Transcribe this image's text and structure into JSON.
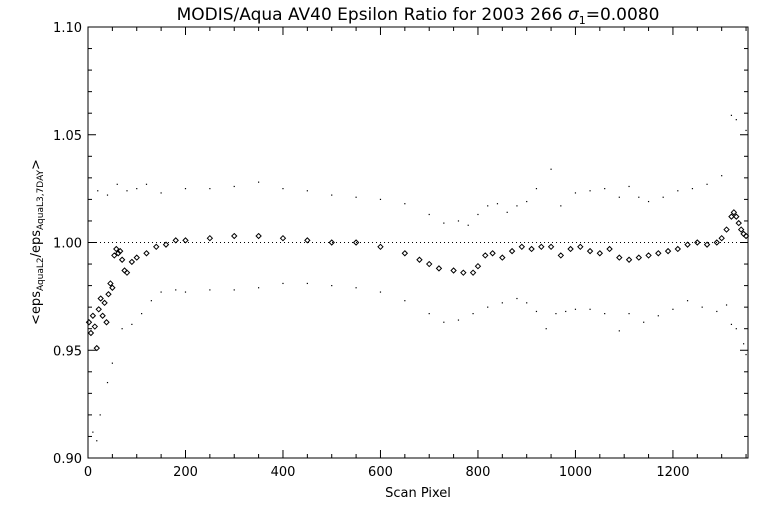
{
  "chart_data": {
    "type": "scatter",
    "title": {
      "main": "MODIS/Aqua AV40 Epsilon Ratio for 2003 266 ",
      "sigma_symbol": "σ",
      "sigma_subscript": "1",
      "sigma_value": "=0.0080"
    },
    "xlabel": "Scan Pixel",
    "ylabel": {
      "prefix": "<eps",
      "sub1": "AquaL2",
      "middle": "/eps",
      "sub2": "AquaL3,7DAY",
      "suffix": ">"
    },
    "xlim": [
      0,
      1354
    ],
    "ylim": [
      0.9,
      1.1
    ],
    "x_ticks": [
      {
        "value": 0,
        "label": "0"
      },
      {
        "value": 200,
        "label": "200"
      },
      {
        "value": 400,
        "label": "400"
      },
      {
        "value": 600,
        "label": "600"
      },
      {
        "value": 800,
        "label": "800"
      },
      {
        "value": 1000,
        "label": "1000"
      },
      {
        "value": 1200,
        "label": "1200"
      }
    ],
    "y_ticks": [
      {
        "value": 0.9,
        "label": "0.90"
      },
      {
        "value": 0.95,
        "label": "0.95"
      },
      {
        "value": 1.0,
        "label": "1.00"
      },
      {
        "value": 1.05,
        "label": "1.05"
      },
      {
        "value": 1.1,
        "label": "1.10"
      }
    ],
    "reference_line": 1.0,
    "series": [
      {
        "role": "mean",
        "marker": "diamond",
        "points": [
          [
            2,
            0.963
          ],
          [
            6,
            0.958
          ],
          [
            10,
            0.966
          ],
          [
            14,
            0.961
          ],
          [
            18,
            0.951
          ],
          [
            22,
            0.969
          ],
          [
            26,
            0.974
          ],
          [
            30,
            0.966
          ],
          [
            34,
            0.972
          ],
          [
            38,
            0.963
          ],
          [
            42,
            0.976
          ],
          [
            46,
            0.981
          ],
          [
            50,
            0.979
          ],
          [
            54,
            0.994
          ],
          [
            58,
            0.997
          ],
          [
            62,
            0.995
          ],
          [
            66,
            0.996
          ],
          [
            70,
            0.992
          ],
          [
            75,
            0.987
          ],
          [
            80,
            0.986
          ],
          [
            90,
            0.991
          ],
          [
            100,
            0.993
          ],
          [
            120,
            0.995
          ],
          [
            140,
            0.998
          ],
          [
            160,
            0.999
          ],
          [
            180,
            1.001
          ],
          [
            200,
            1.001
          ],
          [
            250,
            1.002
          ],
          [
            300,
            1.003
          ],
          [
            350,
            1.003
          ],
          [
            400,
            1.002
          ],
          [
            450,
            1.001
          ],
          [
            500,
            1.0
          ],
          [
            550,
            1.0
          ],
          [
            600,
            0.998
          ],
          [
            650,
            0.995
          ],
          [
            680,
            0.992
          ],
          [
            700,
            0.99
          ],
          [
            720,
            0.988
          ],
          [
            750,
            0.987
          ],
          [
            770,
            0.986
          ],
          [
            790,
            0.986
          ],
          [
            800,
            0.989
          ],
          [
            815,
            0.994
          ],
          [
            830,
            0.995
          ],
          [
            850,
            0.993
          ],
          [
            870,
            0.996
          ],
          [
            890,
            0.998
          ],
          [
            910,
            0.997
          ],
          [
            930,
            0.998
          ],
          [
            950,
            0.998
          ],
          [
            970,
            0.994
          ],
          [
            990,
            0.997
          ],
          [
            1010,
            0.998
          ],
          [
            1030,
            0.996
          ],
          [
            1050,
            0.995
          ],
          [
            1070,
            0.997
          ],
          [
            1090,
            0.993
          ],
          [
            1110,
            0.992
          ],
          [
            1130,
            0.993
          ],
          [
            1150,
            0.994
          ],
          [
            1170,
            0.995
          ],
          [
            1190,
            0.996
          ],
          [
            1210,
            0.997
          ],
          [
            1230,
            0.999
          ],
          [
            1250,
            1.0
          ],
          [
            1270,
            0.999
          ],
          [
            1290,
            1.0
          ],
          [
            1300,
            1.002
          ],
          [
            1310,
            1.006
          ],
          [
            1320,
            1.012
          ],
          [
            1325,
            1.014
          ],
          [
            1330,
            1.012
          ],
          [
            1335,
            1.009
          ],
          [
            1340,
            1.006
          ],
          [
            1345,
            1.004
          ],
          [
            1350,
            1.003
          ]
        ]
      },
      {
        "role": "upper",
        "marker": "dot",
        "points": [
          [
            20,
            1.024
          ],
          [
            40,
            1.022
          ],
          [
            60,
            1.027
          ],
          [
            80,
            1.024
          ],
          [
            100,
            1.025
          ],
          [
            120,
            1.027
          ],
          [
            150,
            1.023
          ],
          [
            200,
            1.025
          ],
          [
            250,
            1.025
          ],
          [
            300,
            1.026
          ],
          [
            350,
            1.028
          ],
          [
            400,
            1.025
          ],
          [
            450,
            1.024
          ],
          [
            500,
            1.022
          ],
          [
            550,
            1.021
          ],
          [
            600,
            1.02
          ],
          [
            650,
            1.018
          ],
          [
            700,
            1.013
          ],
          [
            730,
            1.009
          ],
          [
            760,
            1.01
          ],
          [
            780,
            1.008
          ],
          [
            800,
            1.013
          ],
          [
            820,
            1.017
          ],
          [
            840,
            1.018
          ],
          [
            860,
            1.014
          ],
          [
            880,
            1.017
          ],
          [
            900,
            1.019
          ],
          [
            920,
            1.025
          ],
          [
            950,
            1.034
          ],
          [
            970,
            1.017
          ],
          [
            1000,
            1.023
          ],
          [
            1030,
            1.024
          ],
          [
            1060,
            1.025
          ],
          [
            1090,
            1.021
          ],
          [
            1110,
            1.026
          ],
          [
            1130,
            1.021
          ],
          [
            1150,
            1.019
          ],
          [
            1180,
            1.021
          ],
          [
            1210,
            1.024
          ],
          [
            1240,
            1.025
          ],
          [
            1270,
            1.027
          ],
          [
            1300,
            1.031
          ],
          [
            1320,
            1.059
          ],
          [
            1330,
            1.057
          ],
          [
            1350,
            1.052
          ]
        ]
      },
      {
        "role": "lower",
        "marker": "dot",
        "points": [
          [
            10,
            0.912
          ],
          [
            18,
            0.908
          ],
          [
            25,
            0.92
          ],
          [
            40,
            0.935
          ],
          [
            50,
            0.944
          ],
          [
            70,
            0.96
          ],
          [
            90,
            0.962
          ],
          [
            110,
            0.967
          ],
          [
            130,
            0.973
          ],
          [
            150,
            0.977
          ],
          [
            180,
            0.978
          ],
          [
            200,
            0.977
          ],
          [
            250,
            0.978
          ],
          [
            300,
            0.978
          ],
          [
            350,
            0.979
          ],
          [
            400,
            0.981
          ],
          [
            450,
            0.981
          ],
          [
            500,
            0.98
          ],
          [
            550,
            0.979
          ],
          [
            600,
            0.977
          ],
          [
            650,
            0.973
          ],
          [
            700,
            0.967
          ],
          [
            730,
            0.963
          ],
          [
            760,
            0.964
          ],
          [
            790,
            0.967
          ],
          [
            820,
            0.97
          ],
          [
            850,
            0.972
          ],
          [
            880,
            0.974
          ],
          [
            900,
            0.972
          ],
          [
            920,
            0.968
          ],
          [
            940,
            0.96
          ],
          [
            960,
            0.967
          ],
          [
            980,
            0.968
          ],
          [
            1000,
            0.969
          ],
          [
            1030,
            0.969
          ],
          [
            1060,
            0.967
          ],
          [
            1090,
            0.959
          ],
          [
            1110,
            0.967
          ],
          [
            1140,
            0.963
          ],
          [
            1170,
            0.966
          ],
          [
            1200,
            0.969
          ],
          [
            1230,
            0.973
          ],
          [
            1260,
            0.97
          ],
          [
            1290,
            0.968
          ],
          [
            1310,
            0.971
          ],
          [
            1320,
            0.962
          ],
          [
            1330,
            0.96
          ],
          [
            1345,
            0.953
          ],
          [
            1350,
            0.948
          ]
        ]
      }
    ]
  }
}
